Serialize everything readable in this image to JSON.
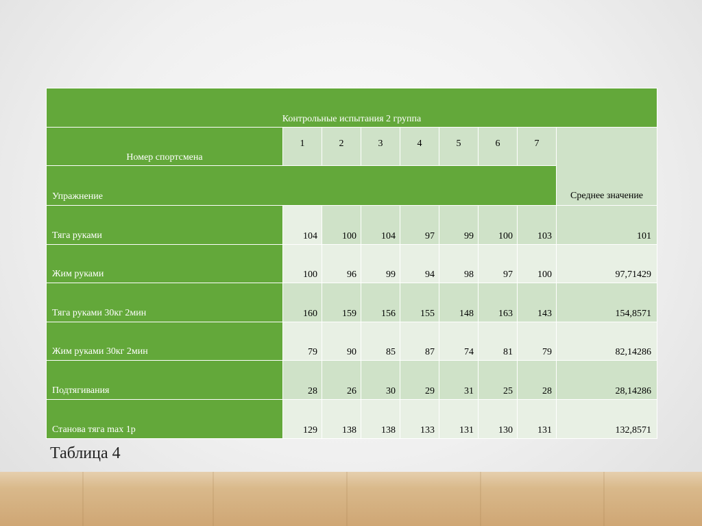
{
  "table": {
    "title": "Контрольные испытания 2 группа",
    "athlete_label": "Номер спортсмена",
    "exercise_label": "Упражнение",
    "athlete_numbers": [
      "1",
      "2",
      "3",
      "4",
      "5",
      "6",
      "7"
    ],
    "average_label": "Среднее значение",
    "rows": [
      {
        "name": "Тяга руками",
        "values": [
          "104",
          "100",
          "104",
          "97",
          "99",
          "100",
          "103"
        ],
        "avg": "101"
      },
      {
        "name": "Жим руками",
        "values": [
          "100",
          "96",
          "99",
          "94",
          "98",
          "97",
          "100"
        ],
        "avg": "97,71429"
      },
      {
        "name": "Тяга руками 30кг 2мин",
        "values": [
          "160",
          "159",
          "156",
          "155",
          "148",
          "163",
          "143"
        ],
        "avg": "154,8571"
      },
      {
        "name": "Жим руками 30кг 2мин",
        "values": [
          "79",
          "90",
          "85",
          "87",
          "74",
          "81",
          "79"
        ],
        "avg": "82,14286"
      },
      {
        "name": "Подтягивания",
        "values": [
          "28",
          "26",
          "30",
          "29",
          "31",
          "25",
          "28"
        ],
        "avg": "28,14286"
      },
      {
        "name": "Станова тяга max 1р",
        "values": [
          "129",
          "138",
          "138",
          "133",
          "131",
          "130",
          "131"
        ],
        "avg": "132,8571"
      }
    ]
  },
  "caption": "Таблица 4",
  "colors": {
    "header_green": "#63a83a",
    "cell_light": "#e8f0e4",
    "cell_mid": "#cfe2c8"
  }
}
